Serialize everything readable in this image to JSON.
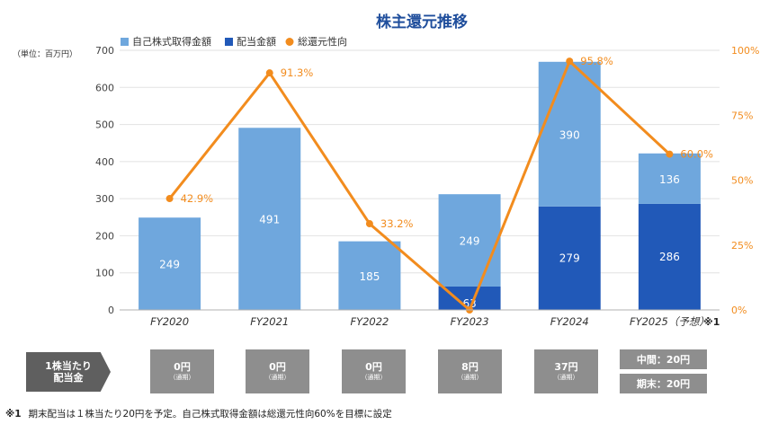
{
  "chart_data": {
    "type": "bar",
    "title": "株主還元推移",
    "unit_label": "（単位：百万円）",
    "categories": [
      "FY2020",
      "FY2021",
      "FY2022",
      "FY2023",
      "FY2024",
      "FY2025（予想）"
    ],
    "category_note": "※1",
    "series": [
      {
        "name": "配当金額",
        "type": "bar",
        "stack": "total",
        "color": "#2159b8",
        "values": [
          0,
          0,
          0,
          63,
          279,
          286
        ]
      },
      {
        "name": "自己株式取得金額",
        "type": "bar",
        "stack": "total",
        "color": "#6fa7dd",
        "values": [
          249,
          491,
          185,
          249,
          390,
          136
        ]
      },
      {
        "name": "総還元性向",
        "type": "line",
        "axis": "right",
        "color": "#f28c1e",
        "values": [
          42.9,
          91.3,
          33.2,
          0,
          95.8,
          60.0
        ],
        "labels": [
          "42.9%",
          "91.3%",
          "33.2%",
          "",
          "95.8%",
          "60.0%"
        ]
      }
    ],
    "legend_order": [
      "自己株式取得金額",
      "配当金額",
      "総還元性向"
    ],
    "ylim": [
      0,
      700
    ],
    "yticks": [
      "0",
      "100",
      "200",
      "300",
      "400",
      "500",
      "600",
      "700"
    ],
    "y2lim": [
      0,
      100
    ],
    "y2ticks": [
      "0%",
      "25%",
      "50%",
      "75%",
      "100%"
    ],
    "legend_position": "top"
  },
  "dividends": {
    "header": [
      "1株当たり",
      "配当金"
    ],
    "items": [
      {
        "value": "0円",
        "sub": "（通期）"
      },
      {
        "value": "0円",
        "sub": "（通期）"
      },
      {
        "value": "0円",
        "sub": "（通期）"
      },
      {
        "value": "8円",
        "sub": "（通期）"
      },
      {
        "value": "37円",
        "sub": "（通期）"
      }
    ],
    "forecast": {
      "interim": "中間：20円",
      "final": "期末：20円"
    }
  },
  "footnote": {
    "mark": "※1",
    "text": "期末配当は１株当たり20円を予定。自己株式取得金額は総還元性向60%を目標に設定"
  }
}
